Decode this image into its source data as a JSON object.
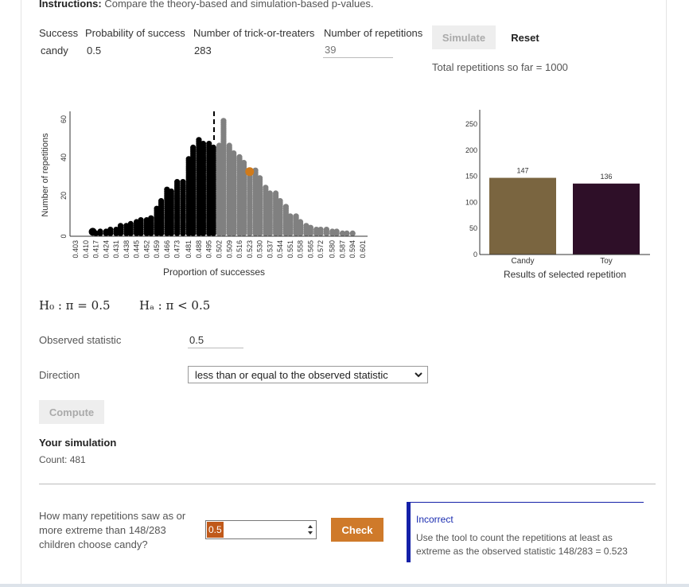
{
  "instructions": {
    "label": "Instructions:",
    "text": " Compare the theory-based and simulation-based p-values."
  },
  "params": {
    "headers": [
      "Success",
      "Probability of success",
      "Number of trick-or-treaters",
      "Number of repetitions"
    ],
    "success": "candy",
    "probability": "0.5",
    "n": "283",
    "repetitions_placeholder": "39"
  },
  "buttons": {
    "simulate": "Simulate",
    "reset": "Reset",
    "compute": "Compute",
    "check": "Check"
  },
  "total_reps": "Total repetitions so far = 1000",
  "dotplot": {
    "ylabel": "Number of repetitions",
    "xlabel": "Proportion of successes",
    "yticks": [
      "0",
      "20",
      "40",
      "60"
    ],
    "xticks": [
      "0.403",
      "0.410",
      "0.417",
      "0.424",
      "0.431",
      "0.438",
      "0.445",
      "0.452",
      "0.459",
      "0.466",
      "0.473",
      "0.481",
      "0.488",
      "0.495",
      "0.502",
      "0.509",
      "0.516",
      "0.523",
      "0.530",
      "0.537",
      "0.544",
      "0.551",
      "0.558",
      "0.565",
      "0.572",
      "0.580",
      "0.587",
      "0.594",
      "0.601"
    ],
    "colors": {
      "selected": "#000000",
      "unselected": "#808080",
      "highlight": "#d07a1a"
    }
  },
  "bar_chart": {
    "xlabel": "Results of selected repetition",
    "yticks": [
      "0",
      "50",
      "100",
      "150",
      "200",
      "250"
    ],
    "categories": [
      "Candy",
      "Toy"
    ],
    "values": [
      147,
      136
    ],
    "value_labels": [
      "147",
      "136"
    ],
    "colors": [
      "#7a6540",
      "#2e0f28"
    ]
  },
  "hypotheses": {
    "h0": "H₀ : π = 0.5",
    "ha": "Hₐ : π < 0.5"
  },
  "observed": {
    "label": "Observed statistic",
    "value": "0.5"
  },
  "direction": {
    "label": "Direction",
    "selected": "less than or equal to the observed statistic"
  },
  "simulation": {
    "title": "Your simulation",
    "count": "Count: 481"
  },
  "question": {
    "text": "How many repetitions saw as or more extreme than 148/283 children choose candy?",
    "answer": "0.5"
  },
  "feedback": {
    "title": "Incorrect",
    "message": "Use the tool to count the repetitions at least as extreme as the observed statistic 148/283 = 0.523"
  },
  "chart_data": [
    {
      "type": "scatter",
      "xlabel": "Proportion of successes",
      "ylabel": "Number of repetitions",
      "ylim": [
        0,
        65
      ],
      "x": [
        0.417,
        0.42,
        0.424,
        0.427,
        0.431,
        0.434,
        0.438,
        0.441,
        0.445,
        0.448,
        0.452,
        0.455,
        0.459,
        0.462,
        0.466,
        0.469,
        0.473,
        0.477,
        0.481,
        0.484,
        0.488,
        0.491,
        0.495,
        0.498,
        0.502,
        0.505,
        0.509,
        0.512,
        0.516,
        0.519,
        0.523,
        0.527,
        0.53,
        0.534,
        0.537,
        0.541,
        0.544,
        0.548,
        0.551,
        0.555,
        0.558,
        0.562,
        0.565,
        0.569,
        0.572,
        0.576,
        0.58,
        0.583,
        0.587,
        0.59,
        0.594
      ],
      "counts": [
        1,
        2,
        2,
        3,
        3,
        5,
        5,
        6,
        7,
        8,
        8,
        9,
        14,
        18,
        24,
        23,
        28,
        28,
        40,
        46,
        50,
        48,
        48,
        46,
        47,
        60,
        47,
        43,
        41,
        38,
        33,
        34,
        30,
        25,
        22,
        22,
        18,
        15,
        10,
        10,
        7,
        5,
        4,
        3,
        3,
        3,
        2,
        2,
        1,
        1,
        1
      ],
      "split_at": 0.5,
      "split_rule": "proportion less than or equal to 0.5 shown in black",
      "marked_point": {
        "x": 0.523,
        "y": 33
      }
    },
    {
      "type": "bar",
      "categories": [
        "Candy",
        "Toy"
      ],
      "values": [
        147,
        136
      ],
      "xlabel": "Results of selected repetition",
      "ylim": [
        0,
        260
      ]
    }
  ]
}
